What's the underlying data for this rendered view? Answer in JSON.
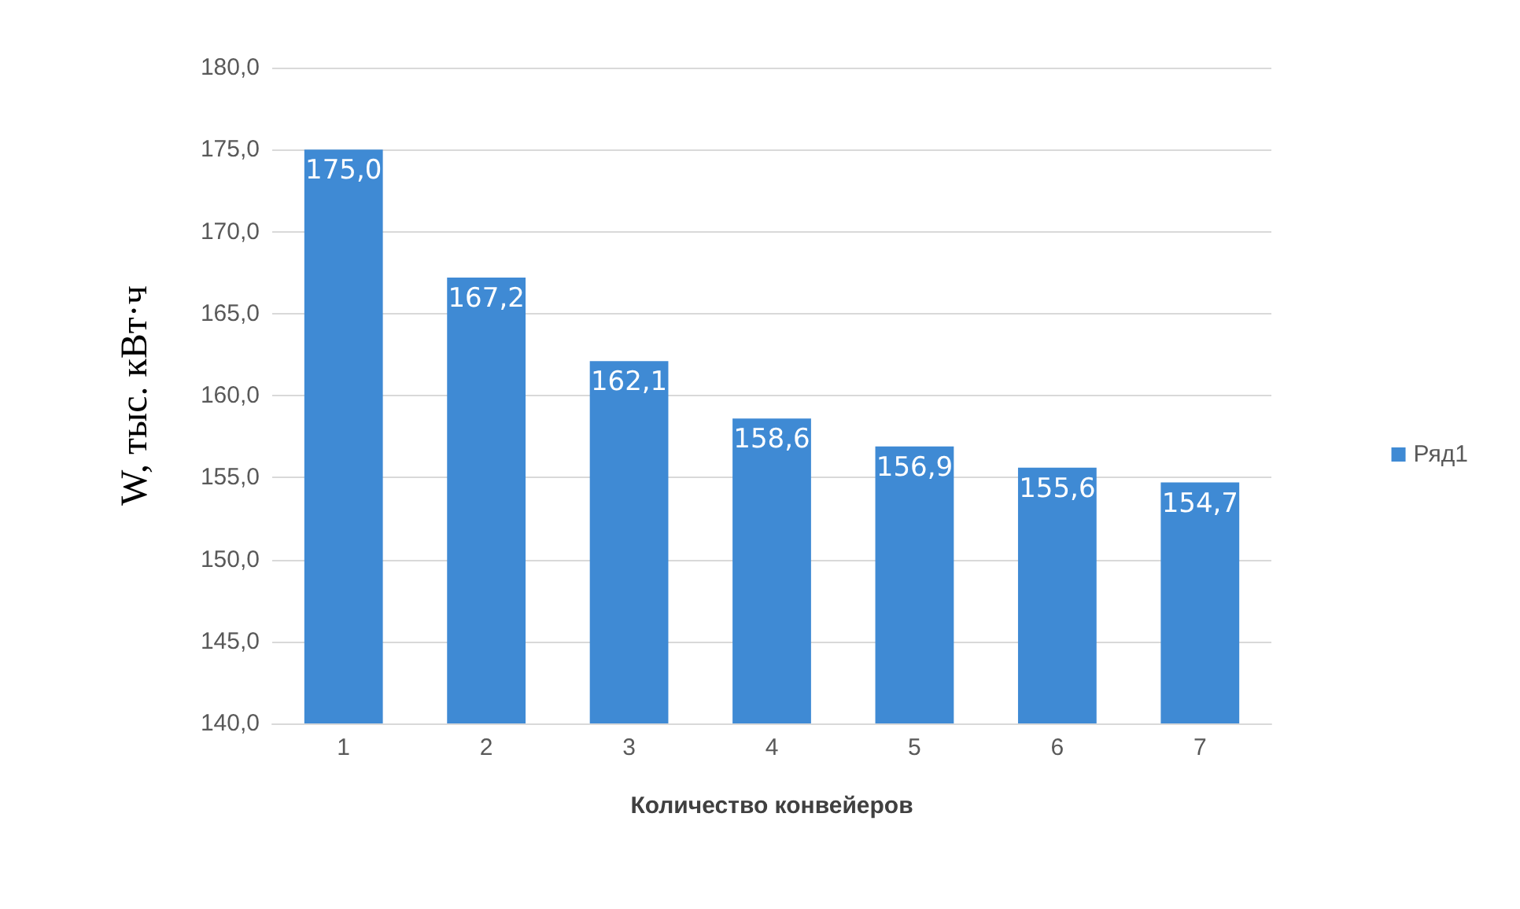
{
  "chart_data": {
    "type": "bar",
    "xlabel": "Количество конвейеров",
    "ylabel": "W, тыс. кВт·ч",
    "categories": [
      "1",
      "2",
      "3",
      "4",
      "5",
      "6",
      "7"
    ],
    "series": [
      {
        "name": "Ряд1",
        "color": "#3f8ad4",
        "values": [
          175.0,
          167.2,
          162.1,
          158.6,
          156.9,
          155.6,
          154.7
        ],
        "value_labels": [
          "175,0",
          "167,2",
          "162,1",
          "158,6",
          "156,9",
          "155,6",
          "154,7"
        ]
      }
    ],
    "ylim": [
      140,
      180
    ],
    "yticks": [
      {
        "value": 140,
        "label": "140,0"
      },
      {
        "value": 145,
        "label": "145,0"
      },
      {
        "value": 150,
        "label": "150,0"
      },
      {
        "value": 155,
        "label": "155,0"
      },
      {
        "value": 160,
        "label": "160,0"
      },
      {
        "value": 165,
        "label": "165,0"
      },
      {
        "value": 170,
        "label": "170,0"
      },
      {
        "value": 175,
        "label": "175,0"
      },
      {
        "value": 180,
        "label": "180,0"
      }
    ],
    "grid": "y",
    "legend": "right"
  }
}
